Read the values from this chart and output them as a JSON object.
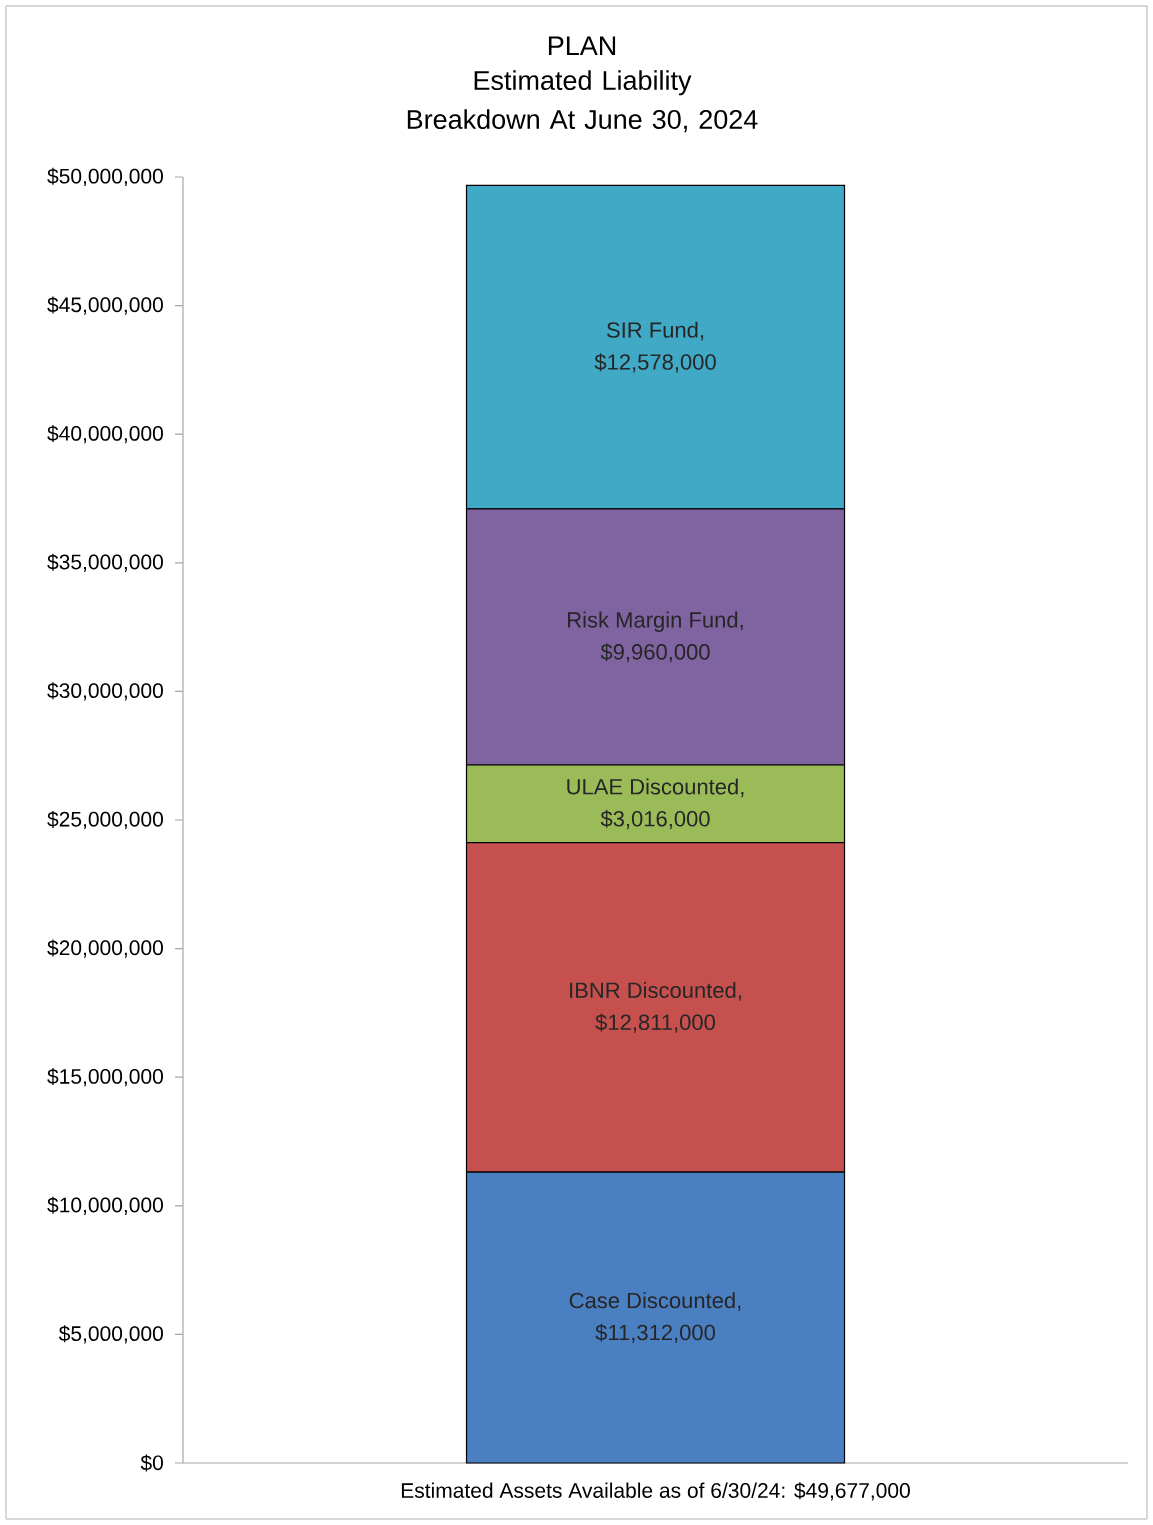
{
  "chart_data": {
    "type": "bar",
    "title": "PLAN",
    "subtitle": "Estimated Liability Breakdown At June 30, 2024",
    "categories": [
      "Estimated Assets Available as of 6/30/24: $49,677,000"
    ],
    "stacked": true,
    "series": [
      {
        "name": "Case Discounted,",
        "color": "#4a7fc1",
        "values": [
          11312000
        ],
        "value_labels": [
          "$11,312,000"
        ]
      },
      {
        "name": "IBNR Discounted,",
        "color": "#c5504d",
        "values": [
          12811000
        ],
        "value_labels": [
          "$12,811,000"
        ]
      },
      {
        "name": "ULAE Discounted,",
        "color": "#9bbb59",
        "values": [
          3016000
        ],
        "value_labels": [
          "$3,016,000"
        ]
      },
      {
        "name": "Risk Margin Fund,",
        "color": "#8064a2",
        "values": [
          9960000
        ],
        "value_labels": [
          "$9,960,000"
        ]
      },
      {
        "name": "SIR Fund,",
        "color": "#3fa9c6",
        "values": [
          12578000
        ],
        "value_labels": [
          "$12,578,000"
        ]
      }
    ],
    "ylim": [
      0,
      50000000
    ],
    "yticks": [
      {
        "value": 0,
        "label": "$0"
      },
      {
        "value": 5000000,
        "label": "$5,000,000"
      },
      {
        "value": 10000000,
        "label": "$10,000,000"
      },
      {
        "value": 15000000,
        "label": "$15,000,000"
      },
      {
        "value": 20000000,
        "label": "$20,000,000"
      },
      {
        "value": 25000000,
        "label": "$25,000,000"
      },
      {
        "value": 30000000,
        "label": "$30,000,000"
      },
      {
        "value": 35000000,
        "label": "$35,000,000"
      },
      {
        "value": 40000000,
        "label": "$40,000,000"
      },
      {
        "value": 45000000,
        "label": "$45,000,000"
      },
      {
        "value": 50000000,
        "label": "$50,000,000"
      }
    ]
  }
}
